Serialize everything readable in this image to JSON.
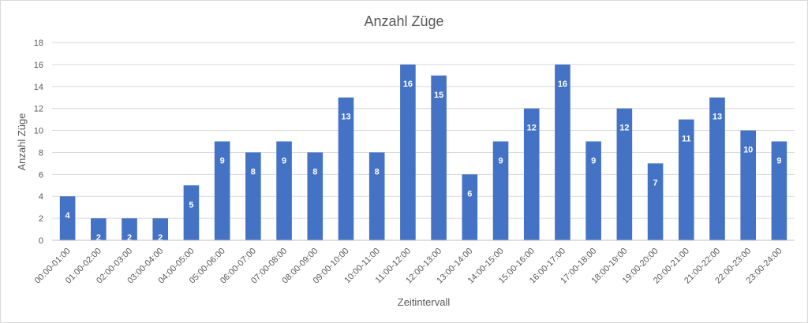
{
  "chart_data": {
    "type": "bar",
    "title": "Anzahl Züge",
    "xlabel": "Zeitintervall",
    "ylabel": "Anzahl Züge",
    "ylim": [
      0,
      18
    ],
    "yticks": [
      0,
      2,
      4,
      6,
      8,
      10,
      12,
      14,
      16,
      18
    ],
    "grid": true,
    "bar_color": "#4472c4",
    "categories": [
      "00:00-01:00",
      "01:00-02:00",
      "02:00-03:00",
      "03:00-04:00",
      "04:00-05:00",
      "05:00-06:00",
      "06:00-07:00",
      "07:00-08:00",
      "08:00-09:00",
      "09:00-10:00",
      "10:00-11:00",
      "11:00-12:00",
      "12:00-13:00",
      "13:00-14:00",
      "14:00-15:00",
      "15:00-16:00",
      "16:00-17:00",
      "17:00-18:00",
      "18:00-19:00",
      "19:00-20:00",
      "20:00-21:00",
      "21:00-22:00",
      "22:00-23:00",
      "23:00-24:00"
    ],
    "values": [
      4,
      2,
      2,
      2,
      5,
      9,
      8,
      9,
      8,
      13,
      8,
      16,
      15,
      6,
      9,
      12,
      16,
      9,
      12,
      7,
      11,
      13,
      10,
      9
    ]
  }
}
